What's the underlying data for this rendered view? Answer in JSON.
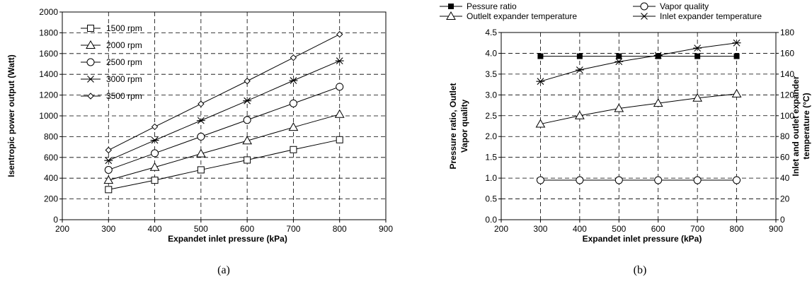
{
  "chart_data": [
    {
      "type": "line",
      "xlabel": "Expandet inlet pressure (kPa)",
      "ylabel": "Isentropic power output (Watt)",
      "xlim": [
        200,
        900
      ],
      "ylim": [
        0,
        2000
      ],
      "xticks": [
        "200",
        "300",
        "400",
        "500",
        "600",
        "700",
        "800",
        "900"
      ],
      "yticks": [
        "0",
        "200",
        "400",
        "600",
        "800",
        "1000",
        "1200",
        "1400",
        "1600",
        "1800",
        "2000"
      ],
      "grid": true,
      "legend_position": "top-left",
      "caption": "(a)",
      "x": [
        300,
        400,
        500,
        600,
        700,
        800
      ],
      "series": [
        {
          "name": "1500 rpm",
          "marker": "square",
          "values": [
            290,
            380,
            480,
            575,
            675,
            770
          ]
        },
        {
          "name": "2000 rpm",
          "marker": "triangle",
          "values": [
            380,
            505,
            635,
            760,
            890,
            1015
          ]
        },
        {
          "name": "2500 rpm",
          "marker": "circle",
          "values": [
            480,
            640,
            800,
            960,
            1120,
            1280
          ]
        },
        {
          "name": "3000 rpm",
          "marker": "star",
          "values": [
            570,
            765,
            955,
            1145,
            1340,
            1530
          ]
        },
        {
          "name": "3500 rpm",
          "marker": "diamond",
          "values": [
            670,
            895,
            1115,
            1335,
            1560,
            1785
          ]
        }
      ]
    },
    {
      "type": "line",
      "xlabel": "Expandet inlet pressure (kPa)",
      "ylabel_left_lines": [
        "Pressure ratio, Outlet",
        "Vapor quality"
      ],
      "ylabel_right_lines": [
        "Inlet and outlet expander",
        "temperature (°C)"
      ],
      "xlim": [
        200,
        900
      ],
      "ylim_left": [
        0,
        4.5
      ],
      "ylim_right": [
        0,
        180
      ],
      "xticks": [
        "200",
        "300",
        "400",
        "500",
        "600",
        "700",
        "800",
        "900"
      ],
      "yticks_left": [
        "0.0",
        "0.5",
        "1.0",
        "1.5",
        "2.0",
        "2.5",
        "3.0",
        "3.5",
        "4.0",
        "4.5"
      ],
      "yticks_right": [
        "0",
        "20",
        "40",
        "60",
        "80",
        "100",
        "120",
        "140",
        "160",
        "180"
      ],
      "grid": true,
      "legend_position": "top",
      "caption": "(b)",
      "x": [
        300,
        400,
        500,
        600,
        700,
        800
      ],
      "series": [
        {
          "name": "Pessure ratio",
          "marker": "filled-square",
          "axis": "left",
          "values": [
            3.93,
            3.93,
            3.93,
            3.93,
            3.93,
            3.93
          ]
        },
        {
          "name": "Vapor quality",
          "marker": "circle",
          "axis": "left",
          "values": [
            0.95,
            0.95,
            0.95,
            0.95,
            0.95,
            0.95
          ]
        },
        {
          "name": "Outlelt expander temperature",
          "marker": "triangle",
          "axis": "right",
          "values": [
            92,
            100,
            107,
            112,
            117,
            121
          ]
        },
        {
          "name": "Inlet expander temperature",
          "marker": "star",
          "axis": "right",
          "values": [
            133,
            144,
            152,
            158,
            165,
            170
          ]
        }
      ]
    }
  ]
}
